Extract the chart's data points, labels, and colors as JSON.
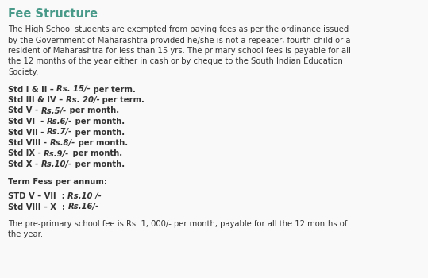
{
  "background_color": "#f9f9f9",
  "title": "Fee Structure",
  "title_color": "#4a9a8a",
  "title_fontsize": 10.5,
  "body_color": "#333333",
  "body_fontsize": 7.2,
  "paragraph1_lines": [
    "The High School students are exempted from paying fees as per the ordinance issued",
    "by the Government of Maharashtra provided he/she is not a repeater, fourth child or a",
    "resident of Maharashtra for less than 15 yrs. The primary school fees is payable for all",
    "the 12 months of the year either in cash or by cheque to the South Indian Education",
    "Society."
  ],
  "fee_lines": [
    {
      "prefix": "Std I & II – ",
      "italic": "Rs. 15/-",
      "suffix": " per term."
    },
    {
      "prefix": "Std III & IV – ",
      "italic": "Rs. 20/-",
      "suffix": " per term."
    },
    {
      "prefix": "Std V - ",
      "italic": "Rs.5/-",
      "suffix": " per month."
    },
    {
      "prefix": "Std VI  - ",
      "italic": "Rs.6/-",
      "suffix": " per month."
    },
    {
      "prefix": "Std VII - ",
      "italic": "Rs.7/-",
      "suffix": " per month."
    },
    {
      "prefix": "Std VIII - ",
      "italic": "Rs.8/-",
      "suffix": " per month."
    },
    {
      "prefix": "Std IX - ",
      "italic": "Rs.9/-",
      "suffix": " per month."
    },
    {
      "prefix": "Std X - ",
      "italic": "Rs.10/-",
      "suffix": " per month."
    }
  ],
  "term_fess_label": "Term Fess per annum:",
  "term_fess_lines": [
    {
      "prefix": "STD V – VII  : ",
      "italic": "Rs.10 /-"
    },
    {
      "prefix": "Std VIII – X  : ",
      "italic": "Rs.16/-"
    }
  ],
  "footer_lines": [
    "The pre-primary school fee is Rs. 1, 000/- per month, payable for all the 12 months of",
    "the year."
  ]
}
